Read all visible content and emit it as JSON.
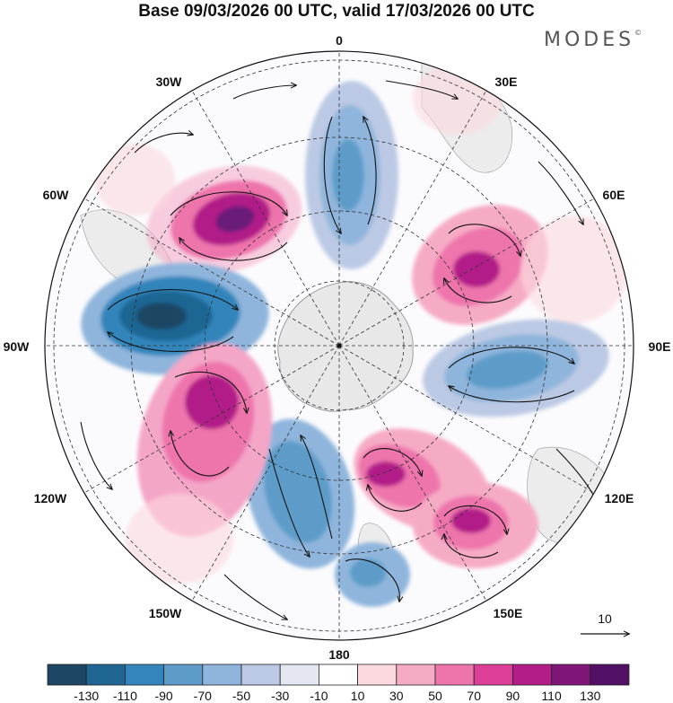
{
  "header": {
    "title": "Base 09/03/2026 00 UTC, valid 17/03/2026 00 UTC",
    "brand": "MODES",
    "brand_mark": "©"
  },
  "map": {
    "projection": "south polar stereographic",
    "longitude_labels": {
      "top": "0",
      "top_right": "30E",
      "right_upper": "60E",
      "right": "90E",
      "right_lower": "120E",
      "bottom_right": "150E",
      "bottom": "180",
      "bottom_left": "150W",
      "left_lower": "120W",
      "left": "90W",
      "left_upper": "60W",
      "top_left": "30W"
    },
    "reference_vector_label": "10",
    "anomaly_colors": {
      "pos_strong": "#6a1a7a",
      "pos_high": "#b41f8e",
      "pos_mid": "#e25aa7",
      "pos_low": "#f4a6c7",
      "neg_strong": "#1e4f78",
      "neg_high": "#2f7db5",
      "neg_mid": "#79acd4",
      "neg_low": "#c8d4ea",
      "land": "#ececec"
    }
  },
  "colorbar": {
    "colors": [
      "#1c4664",
      "#1f6694",
      "#3385bb",
      "#5d9cc9",
      "#8fb5dc",
      "#bcc9e4",
      "#e4e6f2",
      "#ffffff",
      "#fbd9de",
      "#f6abc5",
      "#ee75ac",
      "#dc3e98",
      "#b21d88",
      "#801577",
      "#521065"
    ],
    "labels": [
      "-130",
      "-110",
      "-90",
      "-70",
      "-50",
      "-30",
      "-10",
      "10",
      "30",
      "50",
      "70",
      "90",
      "110",
      "130"
    ]
  }
}
